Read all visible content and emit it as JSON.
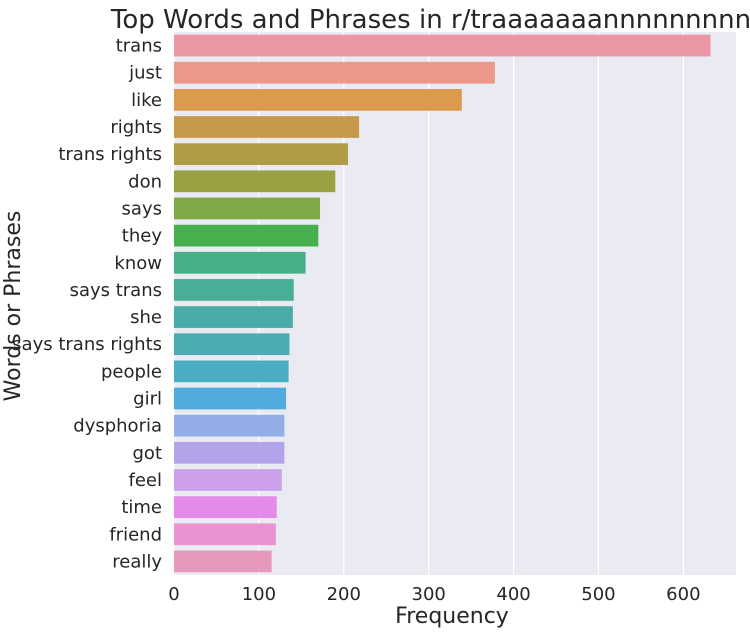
{
  "chart_data": {
    "type": "bar",
    "orientation": "horizontal",
    "title": "Top Words and Phrases in r/traaaaaaannnnnnnnnns",
    "xlabel": "Frequency",
    "ylabel": "Words or Phrases",
    "xlim": [
      0,
      662
    ],
    "x_ticks": [
      0,
      100,
      200,
      300,
      400,
      500,
      600
    ],
    "grid": true,
    "categories": [
      "trans",
      "just",
      "like",
      "rights",
      "trans rights",
      "don",
      "says",
      "they",
      "know",
      "says trans",
      "she",
      "says trans rights",
      "people",
      "girl",
      "dysphoria",
      "got",
      "feel",
      "time",
      "friend",
      "really"
    ],
    "values": [
      632,
      378,
      339,
      218,
      205,
      190,
      172,
      170,
      155,
      141,
      140,
      136,
      135,
      132,
      130,
      130,
      127,
      121,
      120,
      115
    ],
    "colors": [
      "#ea96a3",
      "#eb978a",
      "#dc9a4e",
      "#c69a4d",
      "#b09c46",
      "#9aa143",
      "#80a845",
      "#46b04f",
      "#47ae86",
      "#48ae98",
      "#49aca6",
      "#4bacb3",
      "#4aaec3",
      "#52abde",
      "#93aee6",
      "#b3a4e9",
      "#cca0ea",
      "#e48ae9",
      "#e993d3",
      "#e898bd"
    ],
    "background": "#eaeaf2"
  }
}
